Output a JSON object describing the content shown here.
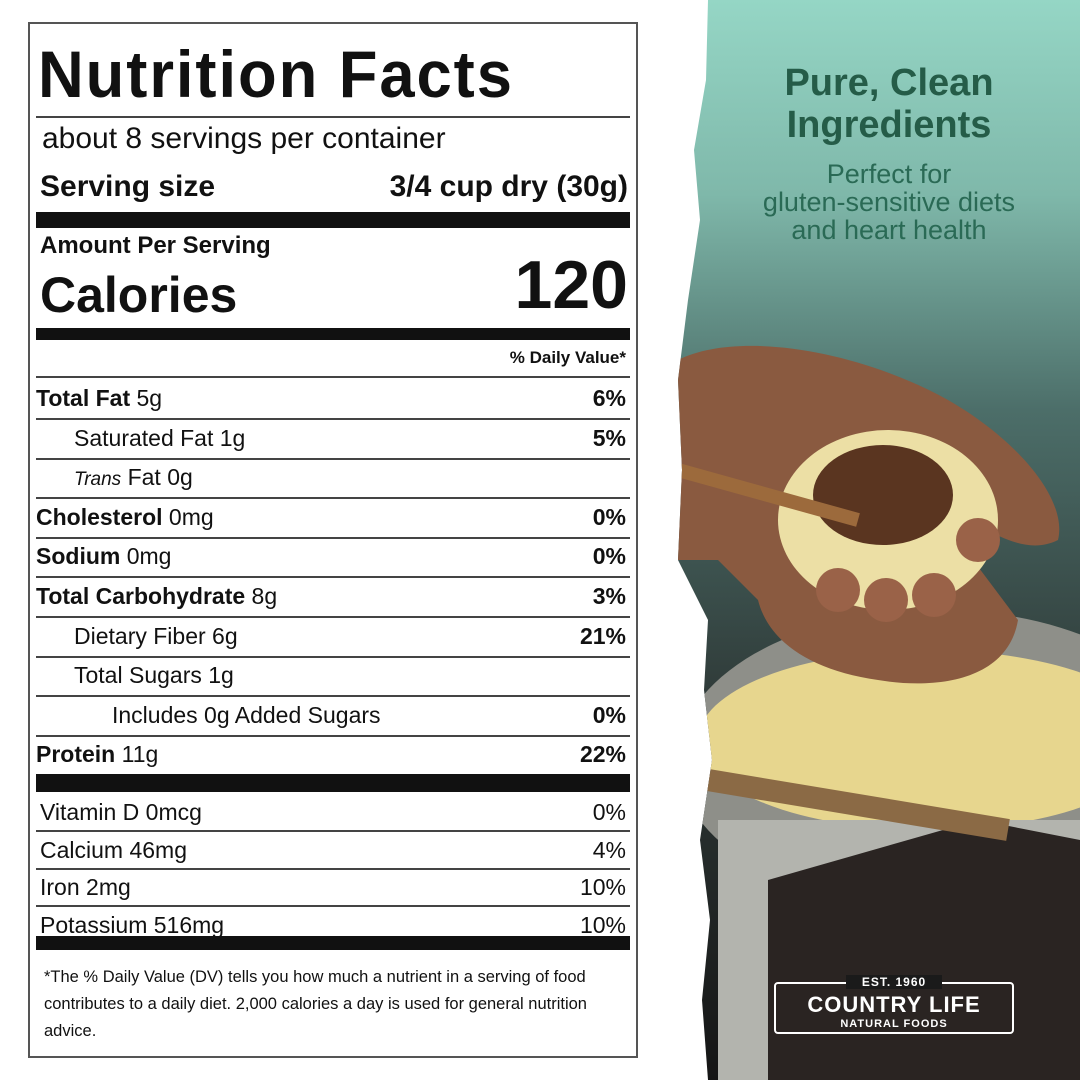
{
  "label": {
    "title": "Nutrition Facts",
    "servings": "about 8 servings per container",
    "serving_size_label": "Serving size",
    "serving_size": "3/4 cup dry (30g)",
    "amount_per_serving": "Amount Per Serving",
    "calories_label": "Calories",
    "calories": "120",
    "daily_value_header": "% Daily Value*",
    "nutrients": [
      {
        "name": "Total Fat",
        "amount": "5g",
        "dv": "6%"
      },
      {
        "name": "Saturated Fat",
        "amount": "1g",
        "dv": "5%"
      },
      {
        "name_italic": "Trans",
        "name": "Fat",
        "amount": "0g"
      },
      {
        "name": "Cholesterol",
        "amount": "0mg",
        "dv": "0%"
      },
      {
        "name": "Sodium",
        "amount": "0mg",
        "dv": "0%"
      },
      {
        "name": "Total Carbohydrate",
        "amount": "8g",
        "dv": "3%"
      },
      {
        "name": "Dietary Fiber",
        "amount": "6g",
        "dv": "21%"
      },
      {
        "name": "Total Sugars",
        "amount": "1g"
      },
      {
        "name": "Includes 0g Added Sugars",
        "dv": "0%"
      },
      {
        "name": "Protein",
        "amount": "11g",
        "dv": "22%"
      }
    ],
    "vitamins": [
      {
        "name": "Vitamin D",
        "amount": "0mcg",
        "dv": "0%"
      },
      {
        "name": "Calcium",
        "amount": "46mg",
        "dv": "4%"
      },
      {
        "name": "Iron",
        "amount": "2mg",
        "dv": "10%"
      },
      {
        "name": "Potassium",
        "amount": "516mg",
        "dv": "10%"
      }
    ],
    "footnote": "*The % Daily Value (DV) tells you how much a nutrient in a serving of food contributes to a daily diet. 2,000 calories a day is used for general nutrition advice."
  },
  "promo": {
    "headline": [
      "Pure, Clean",
      "Ingredients"
    ],
    "subtext": [
      "Perfect for",
      "gluten-sensitive diets",
      "and heart health"
    ]
  },
  "logo": {
    "est": "EST. 1960",
    "brand": "COUNTRY LIFE",
    "tagline": "NATURAL FOODS"
  }
}
